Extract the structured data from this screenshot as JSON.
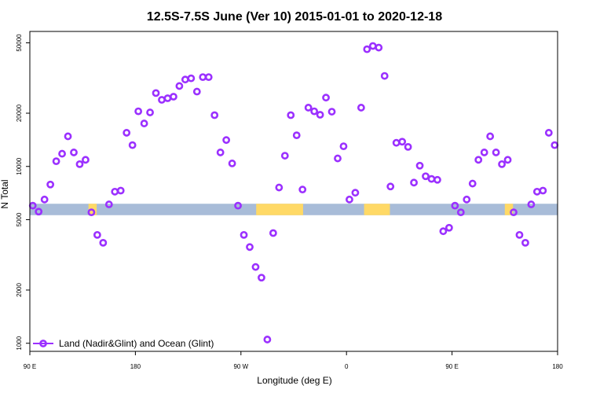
{
  "chart_data": {
    "type": "scatter",
    "title": "12.5S-7.5S June (Ver 10)   2015-01-01 to 2020-12-18",
    "xlabel": "Longitude (deg E)",
    "ylabel": "N Total",
    "x_scale": "linear",
    "y_scale": "log",
    "xlim": [
      90,
      540
    ],
    "ylim": [
      900,
      58000
    ],
    "x_ticks": [
      {
        "value": 90,
        "label": "90 E"
      },
      {
        "value": 180,
        "label": "180"
      },
      {
        "value": 270,
        "label": "90 W"
      },
      {
        "value": 360,
        "label": "0"
      },
      {
        "value": 450,
        "label": "90 E"
      },
      {
        "value": 540,
        "label": "180"
      }
    ],
    "y_ticks": [
      {
        "value": 1000,
        "label": "1000"
      },
      {
        "value": 2000,
        "label": "2000"
      },
      {
        "value": 5000,
        "label": "5000"
      },
      {
        "value": 10000,
        "label": "10000"
      },
      {
        "value": 20000,
        "label": "20000"
      },
      {
        "value": 50000,
        "label": "50000"
      }
    ],
    "band": {
      "y_low": 5300,
      "y_high": 6150,
      "ocean_color": "#a8bcd8",
      "land_color": "#ffd966",
      "land_segments": [
        [
          140,
          147
        ],
        [
          283,
          323
        ],
        [
          375,
          397
        ],
        [
          495,
          502
        ]
      ]
    },
    "legend": {
      "position": "bottom-left",
      "entries": [
        "Land (Nadir&Glint) and Ocean (Glint)"
      ]
    },
    "marker_color": "#9b30ff",
    "series": [
      {
        "name": "Land (Nadir&Glint) and Ocean (Glint)",
        "x": [
          92.5,
          97.5,
          102.5,
          107.5,
          112.5,
          117.5,
          122.5,
          127.5,
          132.5,
          137.5,
          142.5,
          147.5,
          152.5,
          157.5,
          162.5,
          167.5,
          172.5,
          177.5,
          182.5,
          187.5,
          192.5,
          197.5,
          202.5,
          207.5,
          212.5,
          217.5,
          222.5,
          227.5,
          232.5,
          237.5,
          242.5,
          247.5,
          252.5,
          257.5,
          262.5,
          267.5,
          272.5,
          277.5,
          282.5,
          287.5,
          292.5,
          297.5,
          302.5,
          307.5,
          312.5,
          317.5,
          322.5,
          327.5,
          332.5,
          337.5,
          342.5,
          347.5,
          352.5,
          357.5,
          362.5,
          367.5,
          372.5,
          377.5,
          382.5,
          387.5,
          392.5,
          397.5,
          402.5,
          407.5,
          412.5,
          417.5,
          422.5,
          427.5,
          432.5,
          437.5,
          442.5,
          447.5,
          452.5,
          457.5,
          462.5,
          467.5,
          472.5,
          477.5,
          482.5,
          487.5,
          492.5,
          497.5,
          502.5,
          507.5,
          512.5,
          517.5,
          522.5,
          527.5,
          532.5,
          537.5
        ],
        "y": [
          6000,
          5550,
          6500,
          7900,
          10700,
          11800,
          14800,
          12000,
          10300,
          10900,
          5500,
          4100,
          3700,
          6100,
          7200,
          7300,
          15500,
          13200,
          20500,
          17500,
          20200,
          26000,
          23800,
          24300,
          24800,
          28500,
          31000,
          31500,
          26500,
          32000,
          32000,
          19500,
          12000,
          14100,
          10400,
          6000,
          4100,
          3500,
          2700,
          2350,
          1050,
          4200,
          7600,
          11500,
          19500,
          15000,
          7400,
          21500,
          20500,
          19600,
          24500,
          20400,
          11100,
          13000,
          6500,
          7100,
          21500,
          46000,
          48000,
          47000,
          32500,
          7700,
          13600,
          13800,
          12900,
          8100,
          10100,
          8800,
          8500,
          8400,
          4300,
          4500,
          6000,
          5500,
          6500,
          8000,
          10900,
          12000,
          14800,
          12000,
          10300,
          10900,
          5500,
          4100,
          3700,
          6100,
          7200,
          7300,
          15500,
          13200
        ]
      }
    ]
  }
}
